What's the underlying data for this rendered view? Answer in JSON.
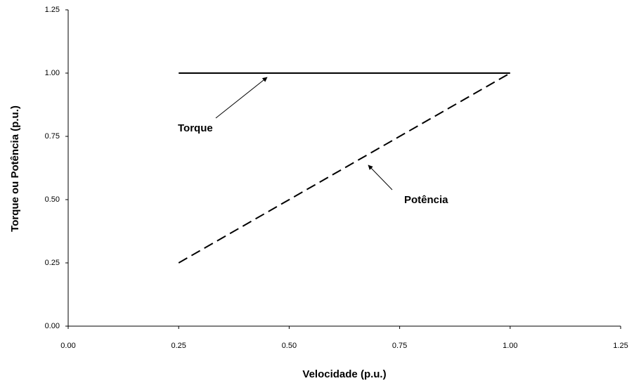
{
  "chart_data": {
    "type": "line",
    "xlabel": "Velocidade (p.u.)",
    "ylabel": "Torque ou Potência (p.u.)",
    "x": [
      0.25,
      1.0
    ],
    "series": [
      {
        "name": "Torque",
        "color": "#000000",
        "dash": false,
        "values": [
          1.0,
          1.0
        ]
      },
      {
        "name": "Potência",
        "color": "#000000",
        "dash": true,
        "values": [
          0.25,
          1.0
        ]
      }
    ],
    "annotations": [
      "Torque",
      "Potência"
    ],
    "xlim": [
      0,
      1.25
    ],
    "ylim": [
      0,
      1.25
    ],
    "xticks": [
      {
        "value": 0,
        "label": "0.00"
      },
      0.25,
      {
        "value": 0.5,
        "label": "0.50"
      },
      0.75,
      {
        "value": 1,
        "label": "1.00"
      },
      1.25
    ],
    "yticks": [
      {
        "value": 0,
        "label": "0.00"
      },
      0.25,
      {
        "value": 0.5,
        "label": "0.50"
      },
      0.75,
      {
        "value": 1,
        "label": "1.00"
      },
      1.25
    ],
    "grid": false
  }
}
